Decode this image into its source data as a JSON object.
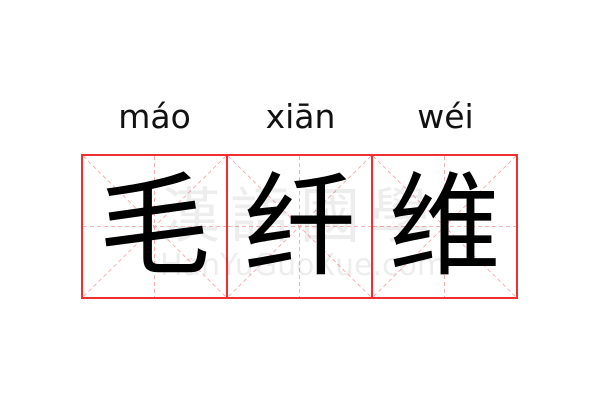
{
  "pinyin": [
    "máo",
    "xiān",
    "wéi"
  ],
  "characters": [
    "毛",
    "纤",
    "维"
  ],
  "watermark": {
    "logo_text": "漢語國學",
    "site": "HanYuGuoXue.com"
  },
  "colors": {
    "grid_border": "#f03030",
    "guide_lines": "#f4a0a0",
    "text": "#000000"
  }
}
